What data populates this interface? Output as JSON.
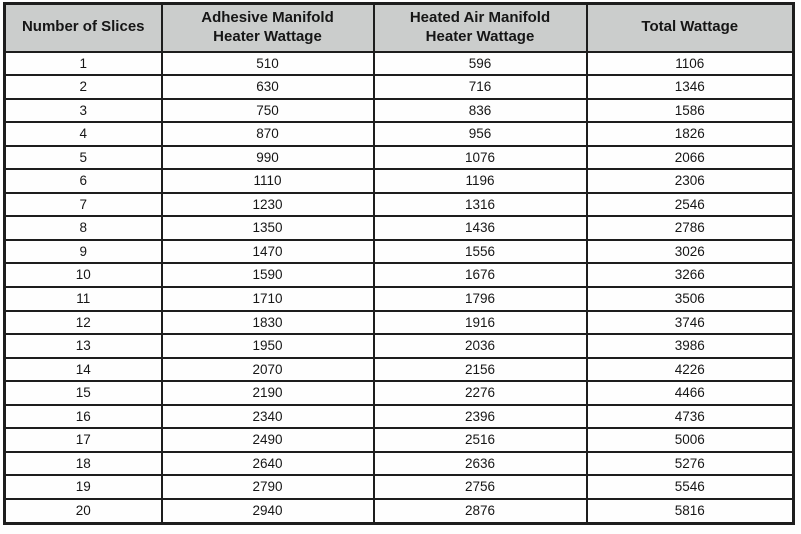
{
  "table": {
    "columns": [
      {
        "label_lines": [
          "Number of Slices"
        ]
      },
      {
        "label_lines": [
          "Adhesive Manifold",
          "Heater Wattage"
        ]
      },
      {
        "label_lines": [
          "Heated Air Manifold",
          "Heater Wattage"
        ]
      },
      {
        "label_lines": [
          "Total Wattage"
        ]
      }
    ],
    "rows": [
      [
        "1",
        "510",
        "596",
        "1106"
      ],
      [
        "2",
        "630",
        "716",
        "1346"
      ],
      [
        "3",
        "750",
        "836",
        "1586"
      ],
      [
        "4",
        "870",
        "956",
        "1826"
      ],
      [
        "5",
        "990",
        "1076",
        "2066"
      ],
      [
        "6",
        "1110",
        "1196",
        "2306"
      ],
      [
        "7",
        "1230",
        "1316",
        "2546"
      ],
      [
        "8",
        "1350",
        "1436",
        "2786"
      ],
      [
        "9",
        "1470",
        "1556",
        "3026"
      ],
      [
        "10",
        "1590",
        "1676",
        "3266"
      ],
      [
        "11",
        "1710",
        "1796",
        "3506"
      ],
      [
        "12",
        "1830",
        "1916",
        "3746"
      ],
      [
        "13",
        "1950",
        "2036",
        "3986"
      ],
      [
        "14",
        "2070",
        "2156",
        "4226"
      ],
      [
        "15",
        "2190",
        "2276",
        "4466"
      ],
      [
        "16",
        "2340",
        "2396",
        "4736"
      ],
      [
        "17",
        "2490",
        "2516",
        "5006"
      ],
      [
        "18",
        "2640",
        "2636",
        "5276"
      ],
      [
        "19",
        "2790",
        "2756",
        "5546"
      ],
      [
        "20",
        "2940",
        "2876",
        "5816"
      ]
    ]
  },
  "colors": {
    "header_bg": "#cbcdcc",
    "border": "#1d1d1d",
    "text": "#161616"
  }
}
